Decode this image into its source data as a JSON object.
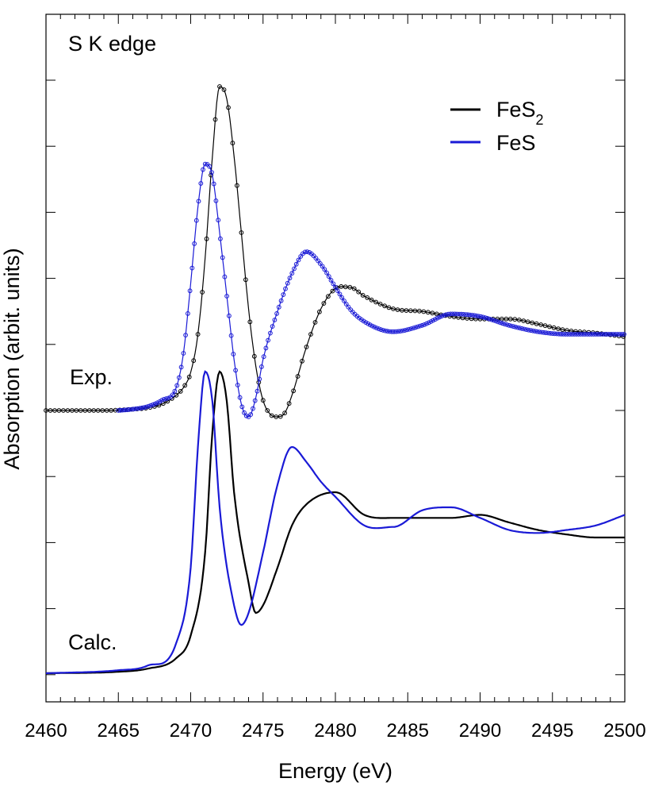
{
  "chart_data": {
    "type": "line",
    "xlabel": "Energy (eV)",
    "ylabel": "Absorption (arbit. units)",
    "annotations": {
      "edge": "S K edge",
      "exp": "Exp.",
      "calc": "Calc."
    },
    "xlim": [
      2460,
      2500
    ],
    "x_ticks": [
      2460,
      2465,
      2470,
      2475,
      2480,
      2485,
      2490,
      2495,
      2500
    ],
    "x_tick_labels": [
      "2460",
      "2465",
      "2470",
      "2475",
      "2480",
      "2485",
      "2490",
      "2495",
      "2500"
    ],
    "y_ticks_labeled": false,
    "legend": {
      "position": "top-right",
      "entries": [
        {
          "base": "FeS",
          "sub": "2",
          "color": "#000000"
        },
        {
          "base": "FeS",
          "sub": "",
          "color": "#1a1ad6"
        }
      ]
    },
    "series": [
      {
        "group": "Exp.",
        "compound": "FeS2",
        "color": "#000000",
        "markers": true,
        "points": [
          [
            2460,
            0.0
          ],
          [
            2462,
            0.0
          ],
          [
            2464,
            0.0
          ],
          [
            2466,
            0.01
          ],
          [
            2467,
            0.02
          ],
          [
            2468,
            0.05
          ],
          [
            2469,
            0.12
          ],
          [
            2469.5,
            0.18
          ],
          [
            2470,
            0.3
          ],
          [
            2470.5,
            0.6
          ],
          [
            2471,
            1.2
          ],
          [
            2471.5,
            2.0
          ],
          [
            2472,
            2.55
          ],
          [
            2472.5,
            2.45
          ],
          [
            2473,
            2.0
          ],
          [
            2473.5,
            1.4
          ],
          [
            2474,
            0.8
          ],
          [
            2474.5,
            0.35
          ],
          [
            2475,
            0.08
          ],
          [
            2475.5,
            -0.03
          ],
          [
            2476,
            -0.05
          ],
          [
            2476.5,
            -0.02
          ],
          [
            2477,
            0.12
          ],
          [
            2478,
            0.5
          ],
          [
            2479,
            0.8
          ],
          [
            2480,
            0.96
          ],
          [
            2481,
            0.97
          ],
          [
            2482,
            0.9
          ],
          [
            2484,
            0.8
          ],
          [
            2486,
            0.78
          ],
          [
            2488,
            0.74
          ],
          [
            2490,
            0.72
          ],
          [
            2492,
            0.72
          ],
          [
            2494,
            0.68
          ],
          [
            2496,
            0.63
          ],
          [
            2498,
            0.61
          ],
          [
            2500,
            0.58
          ]
        ]
      },
      {
        "group": "Exp.",
        "compound": "FeS",
        "color": "#1a1ad6",
        "markers": true,
        "points": [
          [
            2465,
            0.0
          ],
          [
            2466,
            0.01
          ],
          [
            2467,
            0.03
          ],
          [
            2468,
            0.08
          ],
          [
            2469,
            0.18
          ],
          [
            2469.5,
            0.45
          ],
          [
            2470,
            1.0
          ],
          [
            2470.5,
            1.6
          ],
          [
            2471,
            1.94
          ],
          [
            2471.5,
            1.85
          ],
          [
            2472,
            1.4
          ],
          [
            2472.5,
            0.9
          ],
          [
            2473,
            0.4
          ],
          [
            2473.5,
            0.05
          ],
          [
            2474,
            -0.05
          ],
          [
            2474.5,
            0.1
          ],
          [
            2475,
            0.4
          ],
          [
            2476,
            0.78
          ],
          [
            2477,
            1.08
          ],
          [
            2478,
            1.25
          ],
          [
            2479,
            1.15
          ],
          [
            2480,
            0.97
          ],
          [
            2481,
            0.8
          ],
          [
            2482,
            0.7
          ],
          [
            2484,
            0.62
          ],
          [
            2486,
            0.67
          ],
          [
            2488,
            0.76
          ],
          [
            2490,
            0.74
          ],
          [
            2492,
            0.67
          ],
          [
            2494,
            0.62
          ],
          [
            2496,
            0.6
          ],
          [
            2498,
            0.6
          ],
          [
            2500,
            0.6
          ]
        ]
      },
      {
        "group": "Calc.",
        "compound": "FeS2",
        "color": "#000000",
        "markers": false,
        "points": [
          [
            2460,
            0.0
          ],
          [
            2465,
            0.01
          ],
          [
            2467,
            0.03
          ],
          [
            2469,
            0.1
          ],
          [
            2470,
            0.25
          ],
          [
            2471,
            0.8
          ],
          [
            2471.5,
            1.6
          ],
          [
            2472,
            2.0
          ],
          [
            2472.5,
            1.8
          ],
          [
            2473,
            1.2
          ],
          [
            2474,
            0.6
          ],
          [
            2474.5,
            0.4
          ],
          [
            2475,
            0.45
          ],
          [
            2476,
            0.7
          ],
          [
            2477,
            0.98
          ],
          [
            2478,
            1.12
          ],
          [
            2480,
            1.2
          ],
          [
            2482,
            1.05
          ],
          [
            2484,
            1.03
          ],
          [
            2486,
            1.03
          ],
          [
            2488,
            1.03
          ],
          [
            2490,
            1.05
          ],
          [
            2492,
            1.0
          ],
          [
            2494,
            0.95
          ],
          [
            2496,
            0.92
          ],
          [
            2498,
            0.9
          ],
          [
            2500,
            0.9
          ]
        ]
      },
      {
        "group": "Calc.",
        "compound": "FeS",
        "color": "#1a1ad6",
        "markers": false,
        "points": [
          [
            2460,
            0.0
          ],
          [
            2465,
            0.02
          ],
          [
            2467,
            0.05
          ],
          [
            2469,
            0.2
          ],
          [
            2470,
            0.7
          ],
          [
            2470.5,
            1.5
          ],
          [
            2471,
            2.0
          ],
          [
            2471.5,
            1.8
          ],
          [
            2472,
            1.1
          ],
          [
            2473,
            0.45
          ],
          [
            2473.5,
            0.32
          ],
          [
            2474,
            0.4
          ],
          [
            2475,
            0.8
          ],
          [
            2476,
            1.25
          ],
          [
            2477,
            1.5
          ],
          [
            2478,
            1.4
          ],
          [
            2479,
            1.27
          ],
          [
            2480,
            1.17
          ],
          [
            2482,
            0.98
          ],
          [
            2484,
            0.97
          ],
          [
            2486,
            1.08
          ],
          [
            2488,
            1.1
          ],
          [
            2490,
            1.03
          ],
          [
            2492,
            0.95
          ],
          [
            2494,
            0.93
          ],
          [
            2496,
            0.95
          ],
          [
            2498,
            0.98
          ],
          [
            2500,
            1.05
          ]
        ]
      }
    ]
  }
}
